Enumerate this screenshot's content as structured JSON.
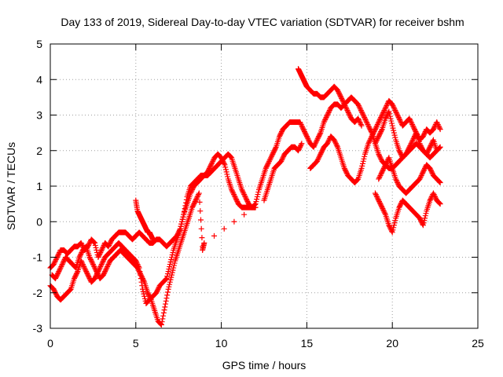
{
  "chart_data": {
    "type": "scatter",
    "title": "Day 133 of 2019, Sidereal Day-to-day VTEC variation (SDTVAR) for receiver bshm",
    "xlabel": "GPS time / hours",
    "ylabel": "SDTVAR / TECUs",
    "xlim": [
      0,
      25
    ],
    "ylim": [
      -3,
      5
    ],
    "xticks": [
      "0",
      "5",
      "10",
      "15",
      "20",
      "25"
    ],
    "yticks": [
      "-3",
      "-2",
      "-1",
      "0",
      "1",
      "2",
      "3",
      "4",
      "5"
    ],
    "grid": true,
    "marker": "+",
    "color": "#ff0000",
    "series": [
      {
        "x": [
          0.0,
          0.2,
          0.4,
          0.6,
          0.8,
          1.0,
          1.2,
          1.4,
          1.6,
          1.8,
          2.0,
          2.2,
          2.4,
          2.6,
          2.8,
          3.0,
          3.2,
          3.4,
          3.6,
          3.8,
          4.0,
          4.2,
          4.4,
          4.6,
          4.8,
          5.0,
          5.2,
          5.4,
          5.6,
          5.8,
          6.0,
          6.2,
          6.4,
          6.6,
          6.8,
          7.0,
          7.2,
          7.4,
          7.6,
          7.8,
          8.0,
          8.2,
          8.4,
          8.6,
          8.8,
          9.0,
          9.2,
          9.4,
          9.6,
          9.8,
          10.0,
          10.2,
          10.4,
          10.6,
          10.8,
          11.0,
          11.2,
          11.4,
          11.6,
          11.8,
          12.0,
          12.2,
          12.4,
          12.6,
          12.8,
          13.0,
          13.2,
          13.4,
          13.6,
          13.8,
          14.0,
          14.2,
          14.4,
          14.6,
          14.8,
          15.0,
          15.2,
          15.4,
          15.6,
          15.8,
          16.0,
          16.2,
          16.4,
          16.6,
          16.8,
          17.0,
          17.2,
          17.4,
          17.6,
          17.8,
          18.0,
          18.2,
          18.4,
          18.6,
          18.8,
          19.0,
          19.2,
          19.4,
          19.6,
          19.8,
          20.0,
          20.2,
          20.4,
          20.6,
          20.8,
          21.0,
          21.2,
          21.4,
          21.6,
          21.8,
          22.0,
          22.2,
          22.4,
          22.6,
          22.8
        ],
        "y": [
          -1.3,
          -1.2,
          -1.0,
          -0.8,
          -0.8,
          -0.9,
          -0.8,
          -0.7,
          -0.7,
          -0.6,
          -0.8,
          -0.7,
          -0.5,
          -0.6,
          -1.0,
          -0.8,
          -0.6,
          -0.7,
          -0.5,
          -0.4,
          -0.3,
          -0.3,
          -0.3,
          -0.4,
          -0.5,
          -0.4,
          -0.3,
          -0.4,
          -0.5,
          -0.6,
          -0.6,
          -0.5,
          -0.5,
          -0.6,
          -0.7,
          -0.6,
          -0.5,
          -0.4,
          -0.2,
          0.2,
          0.7,
          1.0,
          1.1,
          1.2,
          1.3,
          1.3,
          1.4,
          1.6,
          1.8,
          1.9,
          1.8,
          1.6,
          1.2,
          0.9,
          0.7,
          0.5,
          0.4,
          0.4,
          0.4,
          0.4,
          0.5,
          0.9,
          1.2,
          1.5,
          1.7,
          1.9,
          2.1,
          2.4,
          2.6,
          2.7,
          2.8,
          2.8,
          2.8,
          2.8,
          2.6,
          2.4,
          2.2,
          2.1,
          2.3,
          2.5,
          2.8,
          3.0,
          3.2,
          3.3,
          3.3,
          3.2,
          3.3,
          3.4,
          3.5,
          3.4,
          3.3,
          3.1,
          2.9,
          2.7,
          2.5,
          2.2,
          1.9,
          1.7,
          1.6,
          1.5,
          1.5,
          1.6,
          1.7,
          1.8,
          1.9,
          2.0,
          2.1,
          2.2,
          2.1,
          2.0,
          1.9,
          1.8,
          1.9,
          2.0,
          2.1
        ]
      },
      {
        "x": [
          0.0,
          0.2,
          0.4,
          0.6,
          0.8,
          1.0,
          1.2,
          1.4,
          1.6,
          1.8,
          2.0,
          2.2,
          2.4,
          2.6,
          2.8,
          3.0,
          3.2,
          3.4,
          3.6,
          3.8,
          4.0,
          4.2,
          4.4,
          4.6,
          4.8,
          5.0,
          5.2,
          5.4,
          5.6,
          5.8,
          6.0,
          6.2,
          6.4,
          6.6,
          6.8,
          7.0,
          7.2,
          7.4,
          7.6,
          7.8,
          8.0,
          8.2,
          8.4,
          8.6,
          8.8,
          9.0,
          9.2,
          9.4,
          9.6,
          9.8,
          10.0,
          10.2,
          10.4,
          10.6,
          10.8,
          11.0,
          11.2,
          11.4,
          11.6,
          11.8,
          12.0
        ],
        "y": [
          -1.8,
          -1.9,
          -2.1,
          -2.2,
          -2.1,
          -2.0,
          -1.9,
          -1.6,
          -1.4,
          -1.1,
          -1.3,
          -1.5,
          -1.7,
          -1.6,
          -1.4,
          -1.2,
          -1.0,
          -0.9,
          -0.8,
          -0.7,
          -0.6,
          -0.7,
          -0.8,
          -0.9,
          -1.0,
          -1.1,
          -1.3,
          -1.9,
          -2.3,
          -2.2,
          -2.1,
          -2.0,
          -1.8,
          -1.7,
          -1.6,
          -1.2,
          -0.8,
          -0.5,
          -0.2,
          0.2,
          0.5,
          0.8,
          1.0,
          1.1,
          1.2,
          1.3,
          1.3,
          1.4,
          1.5,
          1.6,
          1.7,
          1.8,
          1.9,
          1.8,
          1.5,
          1.2,
          0.9,
          0.7,
          0.5,
          0.4,
          0.4
        ]
      },
      {
        "x": [
          0.1,
          0.3,
          0.5,
          0.7,
          0.9,
          1.1,
          1.3,
          1.5,
          1.7,
          1.9,
          2.1,
          2.3,
          2.5,
          2.7,
          2.9,
          3.1,
          3.3,
          3.5,
          3.7,
          3.9,
          4.1,
          4.3,
          4.5,
          4.7,
          4.9,
          5.1,
          5.3,
          5.5,
          5.7,
          5.9,
          6.1,
          6.3,
          6.5,
          6.7,
          6.9,
          7.1,
          7.3,
          7.5,
          7.7,
          7.9,
          8.1,
          8.3,
          8.5,
          8.7,
          8.9
        ],
        "y": [
          -1.5,
          -1.6,
          -1.4,
          -1.2,
          -1.0,
          -1.1,
          -1.2,
          -1.3,
          -1.0,
          -0.8,
          -0.7,
          -1.0,
          -1.2,
          -1.4,
          -1.6,
          -1.5,
          -1.3,
          -1.1,
          -1.0,
          -0.9,
          -0.8,
          -0.9,
          -1.0,
          -1.1,
          -1.2,
          -1.3,
          -1.5,
          -1.7,
          -2.0,
          -2.2,
          -2.5,
          -2.8,
          -2.9,
          -2.4,
          -1.9,
          -1.5,
          -1.1,
          -0.8,
          -0.5,
          -0.2,
          0.1,
          0.4,
          0.6,
          0.8,
          -0.7
        ]
      },
      {
        "x": [
          5.0,
          5.1,
          5.2,
          5.3,
          5.4,
          5.5,
          5.6,
          5.7,
          5.8,
          5.9,
          6.0
        ],
        "y": [
          0.6,
          0.3,
          0.2,
          0.1,
          0.0,
          -0.1,
          -0.2,
          -0.3,
          -0.3,
          -0.4,
          -0.5
        ]
      },
      {
        "x": [
          14.5,
          14.6,
          14.7,
          14.8,
          14.9,
          15.0,
          15.2,
          15.4,
          15.6,
          15.8,
          16.0,
          16.2,
          16.4,
          16.6,
          16.8,
          17.0,
          17.2,
          17.4,
          17.6,
          17.8,
          18.0,
          18.2
        ],
        "y": [
          4.3,
          4.2,
          4.1,
          4.0,
          3.9,
          3.8,
          3.7,
          3.6,
          3.6,
          3.5,
          3.5,
          3.6,
          3.7,
          3.8,
          3.7,
          3.5,
          3.3,
          3.1,
          2.9,
          2.8,
          2.9,
          2.7
        ]
      },
      {
        "x": [
          15.2,
          15.4,
          15.6,
          15.8,
          16.0,
          16.2,
          16.4,
          16.6,
          16.8,
          17.0,
          17.2,
          17.4,
          17.6,
          17.8,
          18.0,
          18.2,
          18.4,
          18.6,
          18.8,
          19.0,
          19.2,
          19.4,
          19.6,
          19.8,
          20.0,
          20.2,
          20.4,
          20.6,
          20.8,
          21.0,
          21.2,
          21.4,
          21.6,
          21.8,
          22.0,
          22.2,
          22.4,
          22.6,
          22.8
        ],
        "y": [
          1.5,
          1.6,
          1.7,
          1.9,
          2.1,
          2.2,
          2.4,
          2.3,
          2.1,
          1.8,
          1.5,
          1.3,
          1.2,
          1.1,
          1.2,
          1.5,
          1.9,
          2.2,
          2.4,
          2.6,
          2.8,
          3.0,
          3.2,
          3.4,
          3.3,
          3.1,
          2.9,
          2.7,
          2.8,
          2.9,
          2.7,
          2.5,
          2.3,
          2.4,
          2.6,
          2.5,
          2.6,
          2.8,
          2.6
        ]
      },
      {
        "x": [
          19.0,
          19.2,
          19.4,
          19.6,
          19.8,
          20.0,
          20.2,
          20.4,
          20.6,
          20.8,
          21.0,
          21.2,
          21.4,
          21.6,
          21.8,
          22.0,
          22.2,
          22.4,
          22.6,
          22.8
        ],
        "y": [
          0.8,
          0.6,
          0.4,
          0.2,
          -0.1,
          -0.3,
          0.1,
          0.4,
          0.6,
          0.5,
          0.4,
          0.3,
          0.2,
          0.1,
          -0.1,
          0.3,
          0.6,
          0.8,
          0.6,
          0.5
        ]
      },
      {
        "x": [
          19.2,
          19.4,
          19.6,
          19.8,
          20.0,
          20.2,
          20.4,
          20.6,
          20.8,
          21.0,
          21.2,
          21.4,
          21.6,
          21.8,
          22.0,
          22.2,
          22.4,
          22.6,
          22.8
        ],
        "y": [
          1.2,
          1.4,
          1.6,
          1.8,
          1.5,
          1.2,
          1.0,
          0.9,
          0.8,
          0.9,
          1.0,
          1.1,
          1.2,
          1.4,
          1.6,
          1.5,
          1.3,
          1.2,
          1.1
        ]
      },
      {
        "x": [
          19.0,
          19.2,
          19.4,
          19.6,
          19.8,
          20.0,
          20.2,
          20.4,
          20.6,
          20.8,
          21.0,
          21.2,
          21.4,
          21.6,
          21.8,
          22.0,
          22.2,
          22.4,
          22.6
        ],
        "y": [
          2.2,
          2.4,
          2.6,
          2.9,
          3.1,
          2.7,
          2.3,
          2.0,
          1.8,
          1.9,
          2.1,
          2.3,
          2.5,
          2.2,
          2.0,
          1.9,
          2.1,
          2.3,
          2.0
        ]
      },
      {
        "x": [
          8.9,
          9.0,
          12.5,
          12.7,
          12.9,
          13.1,
          13.3,
          13.5,
          13.7,
          13.9,
          14.1,
          14.3,
          14.5,
          14.7
        ],
        "y": [
          -0.8,
          -0.6,
          0.6,
          0.9,
          1.2,
          1.5,
          1.6,
          1.7,
          1.9,
          2.0,
          2.1,
          2.1,
          2.0,
          2.2
        ]
      }
    ]
  }
}
